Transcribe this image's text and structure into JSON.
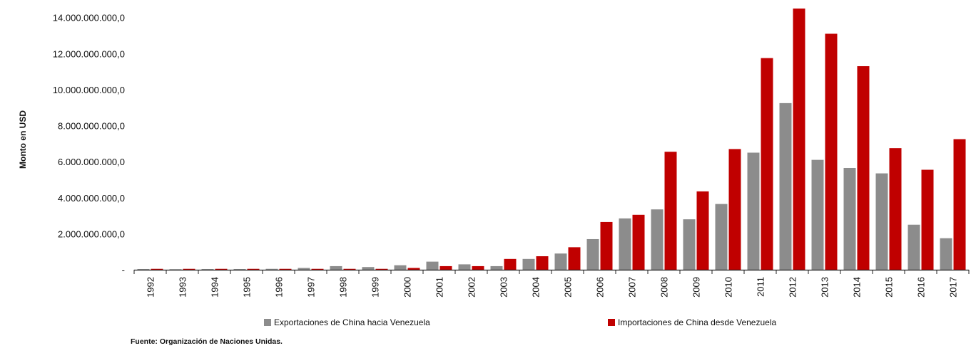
{
  "chart_data": {
    "type": "bar",
    "ylabel": "Monto en USD",
    "ylim": [
      0,
      14500000000
    ],
    "y_ticks": [
      0,
      2000000000,
      4000000000,
      6000000000,
      8000000000,
      10000000000,
      12000000000,
      14000000000
    ],
    "y_tick_labels": [
      "-",
      "2.000.000.000,0",
      "4.000.000.000,0",
      "6.000.000.000,0",
      "8.000.000.000,0",
      "10.000.000.000,0",
      "12.000.000.000,0",
      "14.000.000.000,0"
    ],
    "categories": [
      "1992",
      "1993",
      "1994",
      "1995",
      "1996",
      "1997",
      "1998",
      "1999",
      "2000",
      "2001",
      "2002",
      "2003",
      "2004",
      "2005",
      "2006",
      "2007",
      "2008",
      "2009",
      "2010",
      "2011",
      "2012",
      "2013",
      "2014",
      "2015",
      "2016",
      "2017"
    ],
    "series": [
      {
        "name": "Exportaciones de China hacia Venezuela",
        "color": "#8c8c8c",
        "values": [
          40000000,
          30000000,
          40000000,
          40000000,
          50000000,
          100000000,
          200000000,
          150000000,
          250000000,
          450000000,
          300000000,
          200000000,
          600000000,
          900000000,
          1700000000,
          2850000000,
          3350000000,
          2800000000,
          3650000000,
          6500000000,
          9250000000,
          6100000000,
          5650000000,
          5350000000,
          2500000000,
          1750000000
        ]
      },
      {
        "name": "Importaciones de China desde Venezuela",
        "color": "#c00000",
        "values": [
          50000000,
          50000000,
          50000000,
          50000000,
          50000000,
          50000000,
          50000000,
          50000000,
          100000000,
          200000000,
          200000000,
          600000000,
          750000000,
          1250000000,
          2650000000,
          3050000000,
          6550000000,
          4350000000,
          6700000000,
          11750000000,
          14500000000,
          13100000000,
          11300000000,
          6750000000,
          5550000000,
          7250000000
        ]
      }
    ],
    "legend_position": "bottom",
    "grid": false
  },
  "source": "Fuente: Organización de Naciones Unidas."
}
